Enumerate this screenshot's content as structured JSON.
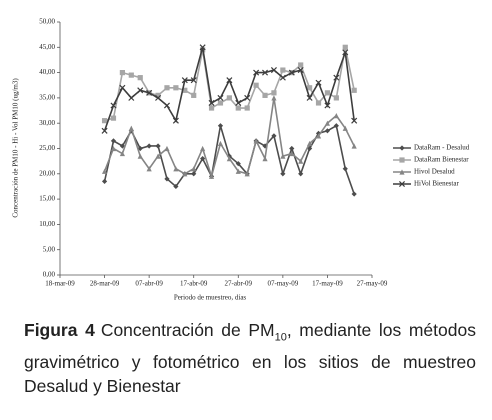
{
  "chart_data": {
    "type": "line",
    "x_label": "Periodo de muestreo, días",
    "y_label": "Concentración de PM10 - Hi - Vol PM10 (ug/m3)",
    "x": [
      "2009-03-28",
      "2009-03-30",
      "2009-04-01",
      "2009-04-03",
      "2009-04-05",
      "2009-04-07",
      "2009-04-09",
      "2009-04-11",
      "2009-04-13",
      "2009-04-15",
      "2009-04-17",
      "2009-04-19",
      "2009-04-21",
      "2009-04-23",
      "2009-04-25",
      "2009-04-27",
      "2009-04-29",
      "2009-05-01",
      "2009-05-03",
      "2009-05-05",
      "2009-05-07",
      "2009-05-09",
      "2009-05-11",
      "2009-05-13",
      "2009-05-15",
      "2009-05-17",
      "2009-05-19",
      "2009-05-21",
      "2009-05-23"
    ],
    "xlim": [
      "2009-03-18",
      "2009-05-27"
    ],
    "xticks": [
      {
        "value": "2009-03-18",
        "label": "18-mar-09"
      },
      {
        "value": "2009-03-28",
        "label": "28-mar-09"
      },
      {
        "value": "2009-04-07",
        "label": "07-abr-09"
      },
      {
        "value": "2009-04-17",
        "label": "17-abr-09"
      },
      {
        "value": "2009-04-27",
        "label": "27-abr-09"
      },
      {
        "value": "2009-05-07",
        "label": "07-may-09"
      },
      {
        "value": "2009-05-17",
        "label": "17-may-09"
      },
      {
        "value": "2009-05-27",
        "label": "27-may-09"
      }
    ],
    "ylim": [
      0,
      50
    ],
    "yticks": [
      {
        "value": 0,
        "label": "0,00"
      },
      {
        "value": 5,
        "label": "5,00"
      },
      {
        "value": 10,
        "label": "10,00"
      },
      {
        "value": 15,
        "label": "15,00"
      },
      {
        "value": 20,
        "label": "20,00"
      },
      {
        "value": 25,
        "label": "25,00"
      },
      {
        "value": 30,
        "label": "30,00"
      },
      {
        "value": 35,
        "label": "35,00"
      },
      {
        "value": 40,
        "label": "40,00"
      },
      {
        "value": 45,
        "label": "45,00"
      },
      {
        "value": 50,
        "label": "50,00"
      }
    ],
    "legend": "right",
    "series": [
      {
        "name": "DataRam - Desalud",
        "color": "#4d4d4d",
        "marker": "diamond",
        "values": [
          18.5,
          26.5,
          25.5,
          28.5,
          25,
          25.5,
          25.5,
          19,
          17.5,
          20,
          20,
          23,
          19.5,
          29.5,
          23.5,
          22,
          20,
          26.5,
          25.5,
          27.5,
          20,
          25,
          20,
          25,
          28,
          28.5,
          29.5,
          21,
          16
        ]
      },
      {
        "name": "DataRam Bienestar",
        "color": "#a6a6a6",
        "marker": "square",
        "values": [
          30.5,
          31,
          40,
          39.5,
          39,
          36,
          35.5,
          37,
          37,
          36.5,
          35.5,
          44.5,
          33,
          34,
          35,
          33,
          33,
          37.5,
          35.5,
          36,
          40.5,
          40,
          41.5,
          37,
          34,
          36,
          35,
          45,
          36.5
        ]
      },
      {
        "name": "Hivol Desalud",
        "color": "#858585",
        "marker": "triangle",
        "values": [
          20.5,
          25,
          24,
          29,
          23.5,
          21,
          23.5,
          25,
          21,
          20,
          21,
          25,
          19.5,
          26,
          23,
          20.5,
          20,
          26.5,
          23,
          35,
          23.5,
          24,
          22.5,
          26,
          27.5,
          30,
          31.5,
          29,
          25.5
        ]
      },
      {
        "name": "HiVol Bienestar",
        "color": "#3d3d3d",
        "marker": "cross",
        "values": [
          28.5,
          33.5,
          37,
          35,
          36.5,
          36,
          35,
          33.5,
          30.5,
          38.5,
          38.5,
          45,
          34,
          35,
          38.5,
          34,
          35,
          40,
          40,
          40.5,
          39,
          40,
          40.5,
          35,
          38,
          33.5,
          39,
          44,
          30.5
        ]
      }
    ]
  },
  "caption": {
    "label": "Figura 4",
    "text_before": "Concentración de PM",
    "subscript": "10",
    "text_after": ", mediante los métodos gravimétrico y fotométrico en los sitios de muestreo Desalud y Bienestar"
  }
}
